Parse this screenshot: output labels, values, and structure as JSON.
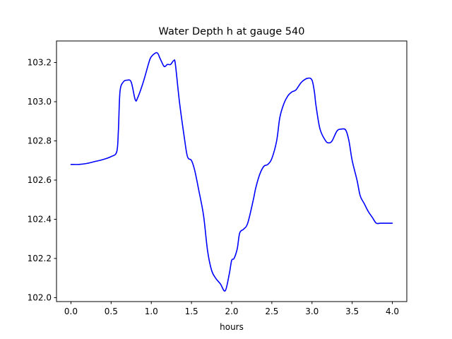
{
  "chart_data": {
    "type": "line",
    "title": "Water Depth h at gauge 540",
    "xlabel": "hours",
    "ylabel": "",
    "xlim": [
      -0.18,
      4.18
    ],
    "ylim": [
      101.98,
      103.31
    ],
    "xticks": [
      0.0,
      0.5,
      1.0,
      1.5,
      2.0,
      2.5,
      3.0,
      3.5,
      4.0
    ],
    "xtick_labels": [
      "0.0",
      "0.5",
      "1.0",
      "1.5",
      "2.0",
      "2.5",
      "3.0",
      "3.5",
      "4.0"
    ],
    "yticks": [
      102.0,
      102.2,
      102.4,
      102.6,
      102.8,
      103.0,
      103.2
    ],
    "ytick_labels": [
      "102.0",
      "102.2",
      "102.4",
      "102.6",
      "102.8",
      "103.0",
      "103.2"
    ],
    "grid": false,
    "series": [
      {
        "color": "#0000ff",
        "x": [
          0.0,
          0.1,
          0.2,
          0.3,
          0.4,
          0.5,
          0.57,
          0.59,
          0.61,
          0.65,
          0.7,
          0.75,
          0.8,
          0.83,
          0.9,
          0.97,
          1.0,
          1.07,
          1.11,
          1.16,
          1.2,
          1.24,
          1.28,
          1.3,
          1.35,
          1.41,
          1.45,
          1.5,
          1.54,
          1.59,
          1.65,
          1.7,
          1.75,
          1.8,
          1.86,
          1.92,
          1.97,
          2.0,
          2.03,
          2.07,
          2.1,
          2.15,
          2.2,
          2.27,
          2.3,
          2.35,
          2.4,
          2.45,
          2.5,
          2.56,
          2.6,
          2.65,
          2.7,
          2.75,
          2.8,
          2.87,
          2.95,
          3.0,
          3.03,
          3.05,
          3.1,
          3.17,
          3.21,
          3.25,
          3.31,
          3.36,
          3.42,
          3.46,
          3.5,
          3.56,
          3.6,
          3.65,
          3.7,
          3.75,
          3.8,
          3.85,
          3.9,
          3.95,
          4.0
        ],
        "values": [
          102.68,
          102.68,
          102.685,
          102.695,
          102.705,
          102.72,
          102.745,
          102.85,
          103.05,
          103.1,
          103.11,
          103.1,
          103.01,
          103.02,
          103.1,
          103.2,
          103.23,
          103.25,
          103.22,
          103.18,
          103.19,
          103.19,
          103.21,
          103.19,
          103.0,
          102.82,
          102.72,
          102.7,
          102.65,
          102.55,
          102.42,
          102.24,
          102.14,
          102.1,
          102.07,
          102.035,
          102.12,
          102.19,
          102.2,
          102.25,
          102.33,
          102.35,
          102.38,
          102.5,
          102.56,
          102.63,
          102.67,
          102.68,
          102.71,
          102.8,
          102.92,
          102.99,
          103.03,
          103.05,
          103.06,
          103.1,
          103.12,
          103.11,
          103.05,
          102.98,
          102.86,
          102.8,
          102.79,
          102.8,
          102.85,
          102.86,
          102.855,
          102.8,
          102.7,
          102.6,
          102.52,
          102.48,
          102.44,
          102.41,
          102.38,
          102.38,
          102.38,
          102.38,
          102.38
        ]
      }
    ]
  }
}
